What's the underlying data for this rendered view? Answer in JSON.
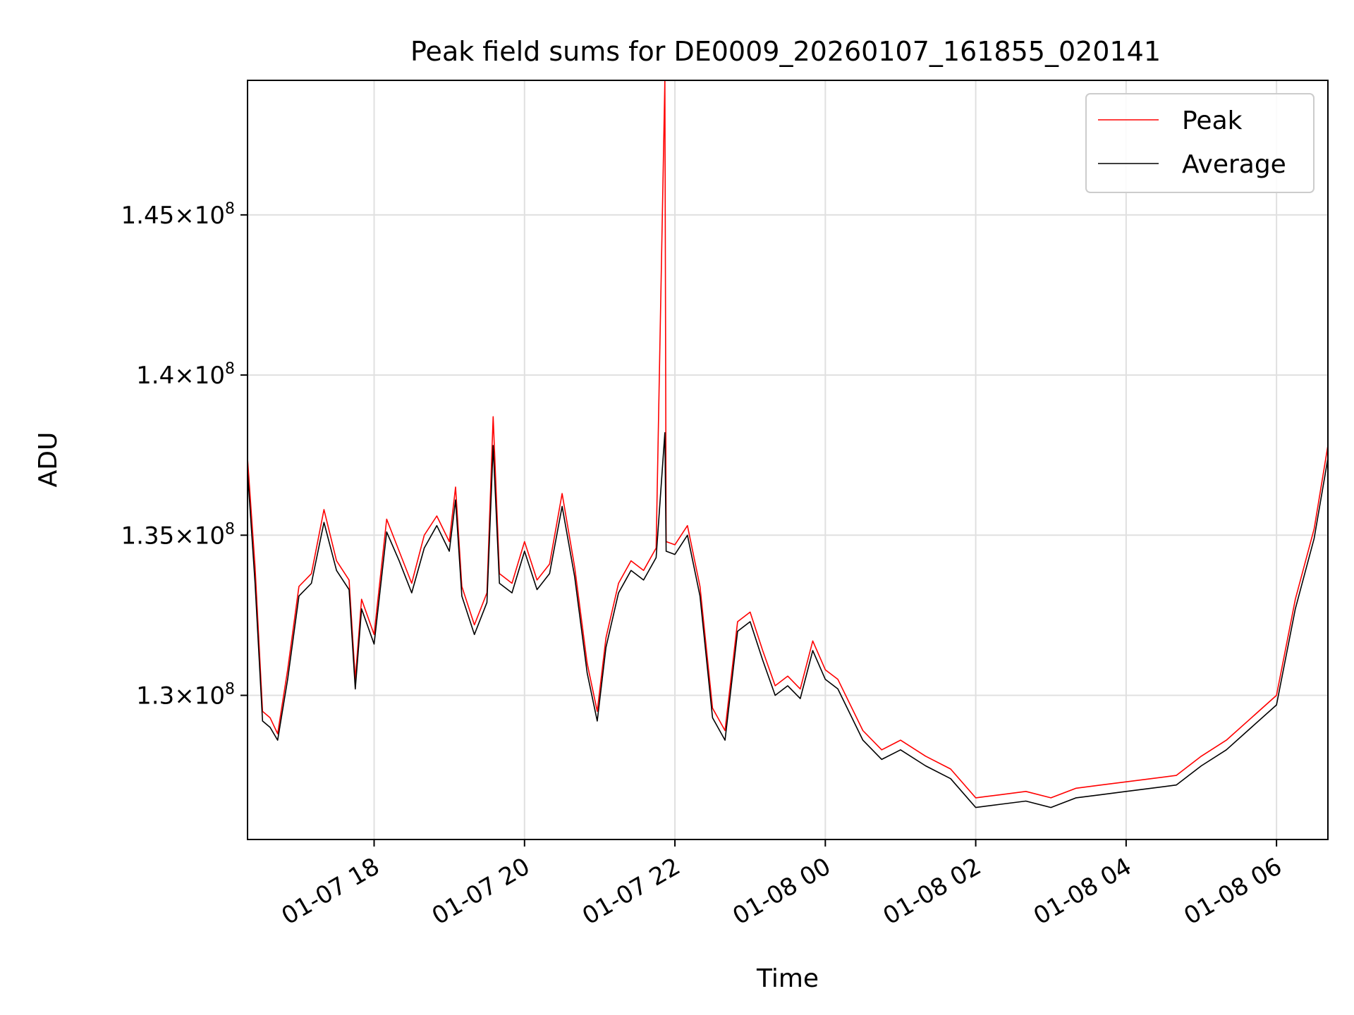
{
  "chart_data": {
    "type": "line",
    "title": "Peak field sums for DE0009_20260107_161855_020141",
    "xlabel": "Time",
    "ylabel": "ADU",
    "grid": true,
    "legend_position": "top-right",
    "xlim": [
      "2026-01-07 16:19",
      "2026-01-08 06:41"
    ],
    "ylim": [
      125500000,
      149200000
    ],
    "x_ticks": [
      {
        "value": "2026-01-07 18:00",
        "label": "01-07 18"
      },
      {
        "value": "2026-01-07 20:00",
        "label": "01-07 20"
      },
      {
        "value": "2026-01-07 22:00",
        "label": "01-07 22"
      },
      {
        "value": "2026-01-08 00:00",
        "label": "01-08 00"
      },
      {
        "value": "2026-01-08 02:00",
        "label": "01-08 02"
      },
      {
        "value": "2026-01-08 04:00",
        "label": "01-08 04"
      },
      {
        "value": "2026-01-08 06:00",
        "label": "01-08 06"
      }
    ],
    "y_ticks": [
      {
        "value": 130000000,
        "mantissa": "1.3",
        "sep": "×",
        "base": "10",
        "exp": "8"
      },
      {
        "value": 135000000,
        "mantissa": "1.35",
        "sep": "×",
        "base": "10",
        "exp": "8"
      },
      {
        "value": 140000000,
        "mantissa": "1.4",
        "sep": "×",
        "base": "10",
        "exp": "8"
      },
      {
        "value": 145000000,
        "mantissa": "1.45",
        "sep": "×",
        "base": "10",
        "exp": "8"
      }
    ],
    "series": [
      {
        "name": "Peak",
        "color": "#ff0000",
        "points": [
          [
            "2026-01-07 16:19",
            137.4
          ],
          [
            "2026-01-07 16:25",
            134.0
          ],
          [
            "2026-01-07 16:31",
            129.5
          ],
          [
            "2026-01-07 16:37",
            129.3
          ],
          [
            "2026-01-07 16:43",
            128.8
          ],
          [
            "2026-01-07 16:51",
            130.8
          ],
          [
            "2026-01-07 17:00",
            133.4
          ],
          [
            "2026-01-07 17:10",
            133.8
          ],
          [
            "2026-01-07 17:20",
            135.8
          ],
          [
            "2026-01-07 17:30",
            134.2
          ],
          [
            "2026-01-07 17:40",
            133.6
          ],
          [
            "2026-01-07 17:45",
            130.5
          ],
          [
            "2026-01-07 17:50",
            133.0
          ],
          [
            "2026-01-07 18:00",
            131.9
          ],
          [
            "2026-01-07 18:10",
            135.5
          ],
          [
            "2026-01-07 18:20",
            134.5
          ],
          [
            "2026-01-07 18:30",
            133.5
          ],
          [
            "2026-01-07 18:40",
            135.0
          ],
          [
            "2026-01-07 18:50",
            135.6
          ],
          [
            "2026-01-07 19:00",
            134.8
          ],
          [
            "2026-01-07 19:05",
            136.5
          ],
          [
            "2026-01-07 19:10",
            133.4
          ],
          [
            "2026-01-07 19:20",
            132.2
          ],
          [
            "2026-01-07 19:30",
            133.2
          ],
          [
            "2026-01-07 19:35",
            138.7
          ],
          [
            "2026-01-07 19:40",
            133.8
          ],
          [
            "2026-01-07 19:50",
            133.5
          ],
          [
            "2026-01-07 20:00",
            134.8
          ],
          [
            "2026-01-07 20:10",
            133.6
          ],
          [
            "2026-01-07 20:20",
            134.1
          ],
          [
            "2026-01-07 20:30",
            136.3
          ],
          [
            "2026-01-07 20:40",
            134.0
          ],
          [
            "2026-01-07 20:50",
            131.0
          ],
          [
            "2026-01-07 20:58",
            129.5
          ],
          [
            "2026-01-07 21:05",
            131.8
          ],
          [
            "2026-01-07 21:15",
            133.5
          ],
          [
            "2026-01-07 21:25",
            134.2
          ],
          [
            "2026-01-07 21:35",
            133.9
          ],
          [
            "2026-01-07 21:45",
            134.6
          ],
          [
            "2026-01-07 21:52",
            149.2
          ],
          [
            "2026-01-07 21:53",
            134.8
          ],
          [
            "2026-01-07 22:00",
            134.7
          ],
          [
            "2026-01-07 22:10",
            135.3
          ],
          [
            "2026-01-07 22:20",
            133.4
          ],
          [
            "2026-01-07 22:30",
            129.6
          ],
          [
            "2026-01-07 22:40",
            128.9
          ],
          [
            "2026-01-07 22:50",
            132.3
          ],
          [
            "2026-01-07 23:00",
            132.6
          ],
          [
            "2026-01-07 23:10",
            131.4
          ],
          [
            "2026-01-07 23:20",
            130.3
          ],
          [
            "2026-01-07 23:30",
            130.6
          ],
          [
            "2026-01-07 23:40",
            130.2
          ],
          [
            "2026-01-07 23:50",
            131.7
          ],
          [
            "2026-01-08 00:00",
            130.8
          ],
          [
            "2026-01-08 00:10",
            130.5
          ],
          [
            "2026-01-08 00:30",
            128.9
          ],
          [
            "2026-01-08 00:45",
            128.3
          ],
          [
            "2026-01-08 01:00",
            128.6
          ],
          [
            "2026-01-08 01:20",
            128.1
          ],
          [
            "2026-01-08 01:40",
            127.7
          ],
          [
            "2026-01-08 02:00",
            126.8
          ],
          [
            "2026-01-08 02:20",
            126.9
          ],
          [
            "2026-01-08 02:40",
            127.0
          ],
          [
            "2026-01-08 03:00",
            126.8
          ],
          [
            "2026-01-08 03:20",
            127.1
          ],
          [
            "2026-01-08 03:40",
            127.2
          ],
          [
            "2026-01-08 04:00",
            127.3
          ],
          [
            "2026-01-08 04:20",
            127.4
          ],
          [
            "2026-01-08 04:40",
            127.5
          ],
          [
            "2026-01-08 05:00",
            128.1
          ],
          [
            "2026-01-08 05:20",
            128.6
          ],
          [
            "2026-01-08 05:40",
            129.3
          ],
          [
            "2026-01-08 06:00",
            130.0
          ],
          [
            "2026-01-08 06:15",
            133.0
          ],
          [
            "2026-01-08 06:30",
            135.2
          ],
          [
            "2026-01-08 06:41",
            137.8
          ]
        ]
      },
      {
        "name": "Average",
        "color": "#000000",
        "points": [
          [
            "2026-01-07 16:19",
            137.0
          ],
          [
            "2026-01-07 16:25",
            133.5
          ],
          [
            "2026-01-07 16:31",
            129.2
          ],
          [
            "2026-01-07 16:37",
            129.0
          ],
          [
            "2026-01-07 16:43",
            128.6
          ],
          [
            "2026-01-07 16:51",
            130.5
          ],
          [
            "2026-01-07 17:00",
            133.1
          ],
          [
            "2026-01-07 17:10",
            133.5
          ],
          [
            "2026-01-07 17:20",
            135.4
          ],
          [
            "2026-01-07 17:30",
            133.9
          ],
          [
            "2026-01-07 17:40",
            133.3
          ],
          [
            "2026-01-07 17:45",
            130.2
          ],
          [
            "2026-01-07 17:50",
            132.7
          ],
          [
            "2026-01-07 18:00",
            131.6
          ],
          [
            "2026-01-07 18:10",
            135.1
          ],
          [
            "2026-01-07 18:20",
            134.2
          ],
          [
            "2026-01-07 18:30",
            133.2
          ],
          [
            "2026-01-07 18:40",
            134.6
          ],
          [
            "2026-01-07 18:50",
            135.3
          ],
          [
            "2026-01-07 19:00",
            134.5
          ],
          [
            "2026-01-07 19:05",
            136.1
          ],
          [
            "2026-01-07 19:10",
            133.1
          ],
          [
            "2026-01-07 19:20",
            131.9
          ],
          [
            "2026-01-07 19:30",
            132.9
          ],
          [
            "2026-01-07 19:35",
            137.8
          ],
          [
            "2026-01-07 19:40",
            133.5
          ],
          [
            "2026-01-07 19:50",
            133.2
          ],
          [
            "2026-01-07 20:00",
            134.5
          ],
          [
            "2026-01-07 20:10",
            133.3
          ],
          [
            "2026-01-07 20:20",
            133.8
          ],
          [
            "2026-01-07 20:30",
            135.9
          ],
          [
            "2026-01-07 20:40",
            133.7
          ],
          [
            "2026-01-07 20:50",
            130.7
          ],
          [
            "2026-01-07 20:58",
            129.2
          ],
          [
            "2026-01-07 21:05",
            131.5
          ],
          [
            "2026-01-07 21:15",
            133.2
          ],
          [
            "2026-01-07 21:25",
            133.9
          ],
          [
            "2026-01-07 21:35",
            133.6
          ],
          [
            "2026-01-07 21:45",
            134.3
          ],
          [
            "2026-01-07 21:52",
            138.2
          ],
          [
            "2026-01-07 21:53",
            134.5
          ],
          [
            "2026-01-07 22:00",
            134.4
          ],
          [
            "2026-01-07 22:10",
            135.0
          ],
          [
            "2026-01-07 22:20",
            133.1
          ],
          [
            "2026-01-07 22:30",
            129.3
          ],
          [
            "2026-01-07 22:40",
            128.6
          ],
          [
            "2026-01-07 22:50",
            132.0
          ],
          [
            "2026-01-07 23:00",
            132.3
          ],
          [
            "2026-01-07 23:10",
            131.1
          ],
          [
            "2026-01-07 23:20",
            130.0
          ],
          [
            "2026-01-07 23:30",
            130.3
          ],
          [
            "2026-01-07 23:40",
            129.9
          ],
          [
            "2026-01-07 23:50",
            131.4
          ],
          [
            "2026-01-08 00:00",
            130.5
          ],
          [
            "2026-01-08 00:10",
            130.2
          ],
          [
            "2026-01-08 00:30",
            128.6
          ],
          [
            "2026-01-08 00:45",
            128.0
          ],
          [
            "2026-01-08 01:00",
            128.3
          ],
          [
            "2026-01-08 01:20",
            127.8
          ],
          [
            "2026-01-08 01:40",
            127.4
          ],
          [
            "2026-01-08 02:00",
            126.5
          ],
          [
            "2026-01-08 02:20",
            126.6
          ],
          [
            "2026-01-08 02:40",
            126.7
          ],
          [
            "2026-01-08 03:00",
            126.5
          ],
          [
            "2026-01-08 03:20",
            126.8
          ],
          [
            "2026-01-08 03:40",
            126.9
          ],
          [
            "2026-01-08 04:00",
            127.0
          ],
          [
            "2026-01-08 04:20",
            127.1
          ],
          [
            "2026-01-08 04:40",
            127.2
          ],
          [
            "2026-01-08 05:00",
            127.8
          ],
          [
            "2026-01-08 05:20",
            128.3
          ],
          [
            "2026-01-08 05:40",
            129.0
          ],
          [
            "2026-01-08 06:00",
            129.7
          ],
          [
            "2026-01-08 06:15",
            132.7
          ],
          [
            "2026-01-08 06:30",
            134.9
          ],
          [
            "2026-01-08 06:41",
            137.4
          ]
        ]
      }
    ],
    "y_value_multiplier": 1000000
  }
}
